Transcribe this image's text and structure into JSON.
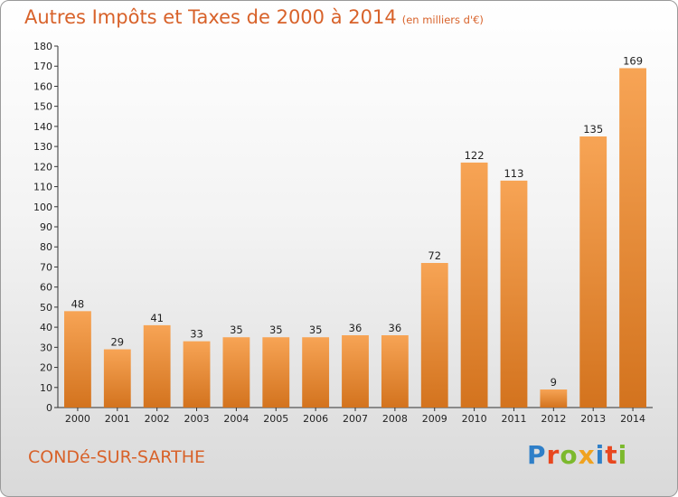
{
  "title": "Autres Impôts et Taxes de 2000 à 2014",
  "unit_label": "(en milliers d'€)",
  "commune": "CONDé-SUR-SARTHE",
  "logo": {
    "text": "Proxiti",
    "letters": [
      "P",
      "r",
      "o",
      "x",
      "i",
      "t",
      "i"
    ]
  },
  "colors": {
    "bar_light": "#f7a455",
    "bar_dark": "#d3731e",
    "title": "#d8622a"
  },
  "chart_data": {
    "type": "bar",
    "title": "Autres Impôts et Taxes de 2000 à 2014",
    "categories": [
      "2000",
      "2001",
      "2002",
      "2003",
      "2004",
      "2005",
      "2006",
      "2007",
      "2008",
      "2009",
      "2010",
      "2011",
      "2012",
      "2013",
      "2014"
    ],
    "values": [
      48,
      29,
      41,
      33,
      35,
      35,
      35,
      36,
      36,
      72,
      122,
      113,
      9,
      135,
      169
    ],
    "value_labels": [
      "48",
      "29",
      "41",
      "33",
      "35",
      "35",
      "35",
      "36",
      "36",
      "72",
      "122",
      "113",
      "9",
      "135",
      "169"
    ],
    "ylim": [
      0,
      180
    ],
    "yticks": [
      "0",
      "10",
      "20",
      "30",
      "40",
      "50",
      "60",
      "70",
      "80",
      "90",
      "100",
      "110",
      "120",
      "130",
      "140",
      "150",
      "160",
      "170",
      "180"
    ],
    "grid": false
  }
}
